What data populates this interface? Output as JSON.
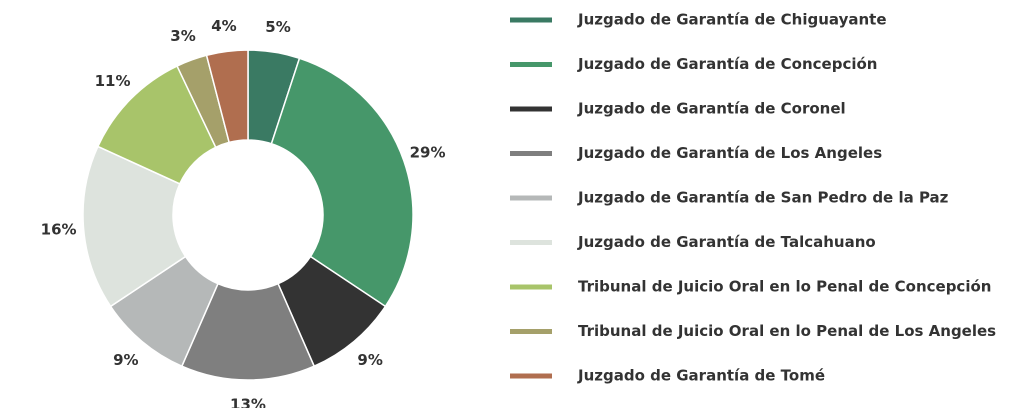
{
  "chart_data": {
    "type": "donut",
    "categories": [
      "Juzgado de Garantía de Chiguayante",
      "Juzgado de Garantía de Concepción",
      "Juzgado de Garantía de Coronel",
      "Juzgado de Garantía de Los Angeles",
      "Juzgado de Garantía de San Pedro de la Paz",
      "Juzgado de Garantía de Talcahuano",
      "Tribunal de Juicio Oral en lo Penal de Concepción",
      "Tribunal de Juicio Oral en lo Penal de Los Angeles",
      "Juzgado de Garantía de Tomé"
    ],
    "values": [
      5,
      29,
      9,
      13,
      9,
      16,
      11,
      3,
      4
    ],
    "value_labels": [
      "5%",
      "29%",
      "9%",
      "13%",
      "9%",
      "16%",
      "11%",
      "3%",
      "4%"
    ],
    "colors": [
      "#3a7a63",
      "#46976a",
      "#333333",
      "#7f7f7f",
      "#b5b8b8",
      "#dde3dd",
      "#a8c46a",
      "#a5a06a",
      "#b06e4f"
    ],
    "legend": "right"
  }
}
